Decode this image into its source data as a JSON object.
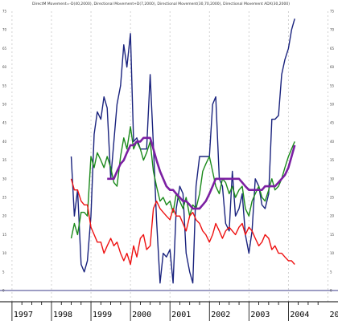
{
  "chart_data": {
    "type": "line",
    "title": "DirectM Movement=-D(40,2000), Directional Movement+D(7,2000), Directional Movement(30,70,2000), Directional Movement ADX(30,2000)",
    "xlabel": "",
    "ylabel": "",
    "ylim": [
      0,
      75
    ],
    "xlim": [
      1996.9,
      2004.95
    ],
    "y_ticks": [
      0,
      5,
      10,
      15,
      20,
      25,
      30,
      35,
      40,
      45,
      50,
      55,
      60,
      65,
      70,
      75
    ],
    "x_ticks": [
      "1997",
      "1998",
      "1999",
      "2000",
      "2001",
      "2002",
      "2003",
      "2004",
      "200"
    ],
    "x_tick_positions": [
      1997,
      1998,
      1999,
      2000,
      2001,
      2002,
      2003,
      2004,
      2005
    ],
    "grid": true,
    "legend": "none",
    "series": [
      {
        "color": "#1a237e",
        "x": [
          1998.5,
          1998.58,
          1998.66,
          1998.75,
          1998.83,
          1998.91,
          1999.0,
          1999.08,
          1999.16,
          1999.25,
          1999.33,
          1999.41,
          1999.5,
          1999.58,
          1999.66,
          1999.75,
          1999.83,
          1999.91,
          2000.0,
          2000.08,
          2000.16,
          2000.25,
          2000.33,
          2000.41,
          2000.5,
          2000.58,
          2000.66,
          2000.75,
          2000.83,
          2000.91,
          2001.0,
          2001.08,
          2001.16,
          2001.25,
          2001.33,
          2001.41,
          2001.5,
          2001.58,
          2001.66,
          2001.75,
          2001.83,
          2001.91,
          2002.0,
          2002.08,
          2002.16,
          2002.25,
          2002.33,
          2002.41,
          2002.5,
          2002.58,
          2002.66,
          2002.75,
          2002.83,
          2002.91,
          2003.0,
          2003.08,
          2003.16,
          2003.25,
          2003.33,
          2003.41,
          2003.5,
          2003.58,
          2003.66,
          2003.75,
          2003.83,
          2003.91,
          2004.0,
          2004.08,
          2004.16
        ],
        "values": [
          36,
          20,
          27,
          7,
          5,
          8,
          20,
          42,
          48,
          46,
          52,
          49,
          30,
          40,
          50,
          55,
          66,
          60,
          69,
          40,
          41,
          38,
          38,
          38,
          58,
          39,
          19,
          2,
          10,
          9,
          11,
          2,
          22,
          28,
          26,
          10,
          5,
          2,
          28,
          36,
          36,
          36,
          36,
          50,
          52,
          30,
          28,
          18,
          16,
          32,
          20,
          22,
          26,
          15,
          10,
          16,
          30,
          28,
          23,
          22,
          26,
          46,
          46,
          47,
          58,
          62,
          65,
          70,
          73
        ]
      },
      {
        "color": "#1b8a1b",
        "x": [
          1998.5,
          1998.58,
          1998.66,
          1998.75,
          1998.83,
          1998.91,
          1999.0,
          1999.08,
          1999.16,
          1999.25,
          1999.33,
          1999.41,
          1999.5,
          1999.58,
          1999.66,
          1999.75,
          1999.83,
          1999.91,
          2000.0,
          2000.08,
          2000.16,
          2000.25,
          2000.33,
          2000.41,
          2000.5,
          2000.58,
          2000.66,
          2000.75,
          2000.83,
          2000.91,
          2001.0,
          2001.08,
          2001.16,
          2001.25,
          2001.33,
          2001.41,
          2001.5,
          2001.58,
          2001.66,
          2001.75,
          2001.83,
          2001.91,
          2002.0,
          2002.08,
          2002.16,
          2002.25,
          2002.33,
          2002.41,
          2002.5,
          2002.58,
          2002.66,
          2002.75,
          2002.83,
          2002.91,
          2003.0,
          2003.08,
          2003.16,
          2003.25,
          2003.33,
          2003.41,
          2003.5,
          2003.58,
          2003.66,
          2003.75,
          2003.83,
          2003.91,
          2004.0,
          2004.08,
          2004.16
        ],
        "values": [
          14,
          18,
          15,
          21,
          21,
          20,
          36,
          33,
          37,
          35,
          33,
          36,
          33,
          29,
          28,
          36,
          41,
          38,
          44,
          38,
          40,
          38,
          35,
          37,
          40,
          32,
          28,
          24,
          25,
          23,
          24,
          21,
          26,
          24,
          22,
          25,
          20,
          23,
          22,
          26,
          32,
          34,
          36,
          32,
          28,
          26,
          30,
          29,
          26,
          28,
          25,
          27,
          28,
          22,
          20,
          24,
          26,
          28,
          25,
          24,
          27,
          30,
          27,
          28,
          30,
          33,
          36,
          38,
          40
        ]
      },
      {
        "color": "#ee1111",
        "x": [
          1998.5,
          1998.58,
          1998.66,
          1998.75,
          1998.83,
          1998.91,
          1999.0,
          1999.08,
          1999.16,
          1999.25,
          1999.33,
          1999.41,
          1999.5,
          1999.58,
          1999.66,
          1999.75,
          1999.83,
          1999.91,
          2000.0,
          2000.08,
          2000.16,
          2000.25,
          2000.33,
          2000.41,
          2000.5,
          2000.58,
          2000.66,
          2000.75,
          2000.83,
          2000.91,
          2001.0,
          2001.08,
          2001.16,
          2001.25,
          2001.33,
          2001.41,
          2001.5,
          2001.58,
          2001.66,
          2001.75,
          2001.83,
          2001.91,
          2002.0,
          2002.08,
          2002.16,
          2002.25,
          2002.33,
          2002.41,
          2002.5,
          2002.58,
          2002.66,
          2002.75,
          2002.83,
          2002.91,
          2003.0,
          2003.08,
          2003.16,
          2003.25,
          2003.33,
          2003.41,
          2003.5,
          2003.58,
          2003.66,
          2003.75,
          2003.83,
          2003.91,
          2004.0,
          2004.08,
          2004.16
        ],
        "values": [
          30,
          27,
          27,
          24,
          23,
          23,
          17,
          15,
          13,
          13,
          10,
          12,
          14,
          12,
          13,
          10,
          8,
          10,
          7,
          12,
          9,
          14,
          15,
          11,
          12,
          22,
          24,
          22,
          21,
          20,
          19,
          22,
          20,
          20,
          18,
          16,
          20,
          21,
          19,
          18,
          16,
          15,
          13,
          15,
          18,
          16,
          14,
          16,
          17,
          16,
          15,
          17,
          18,
          15,
          17,
          16,
          14,
          12,
          13,
          15,
          14,
          11,
          12,
          10,
          10,
          9,
          8,
          8,
          7
        ]
      },
      {
        "color": "#7b1fa2",
        "x": [
          1999.41,
          1999.5,
          1999.58,
          1999.66,
          1999.75,
          1999.83,
          1999.91,
          2000.0,
          2000.08,
          2000.16,
          2000.25,
          2000.33,
          2000.41,
          2000.5,
          2000.58,
          2000.66,
          2000.75,
          2000.83,
          2000.91,
          2001.0,
          2001.08,
          2001.16,
          2001.25,
          2001.33,
          2001.41,
          2001.5,
          2001.58,
          2001.66,
          2001.75,
          2001.83,
          2001.91,
          2002.0,
          2002.08,
          2002.16,
          2002.25,
          2002.33,
          2002.41,
          2002.5,
          2002.58,
          2002.66,
          2002.75,
          2002.83,
          2002.91,
          2003.0,
          2003.08,
          2003.16,
          2003.25,
          2003.33,
          2003.41,
          2003.5,
          2003.58,
          2003.66,
          2003.75,
          2003.83,
          2003.91,
          2004.0,
          2004.08,
          2004.16
        ],
        "values": [
          30,
          30,
          30,
          32,
          34,
          35,
          37,
          39,
          39,
          40,
          40,
          41,
          41,
          41,
          38,
          35,
          32,
          30,
          28,
          27,
          27,
          26,
          25,
          24,
          24,
          23,
          22,
          22,
          22,
          23,
          24,
          26,
          28,
          30,
          30,
          30,
          30,
          30,
          30,
          30,
          30,
          29,
          28,
          27,
          27,
          27,
          27,
          27,
          28,
          28,
          28,
          28,
          29,
          30,
          31,
          33,
          36,
          39
        ]
      }
    ]
  }
}
